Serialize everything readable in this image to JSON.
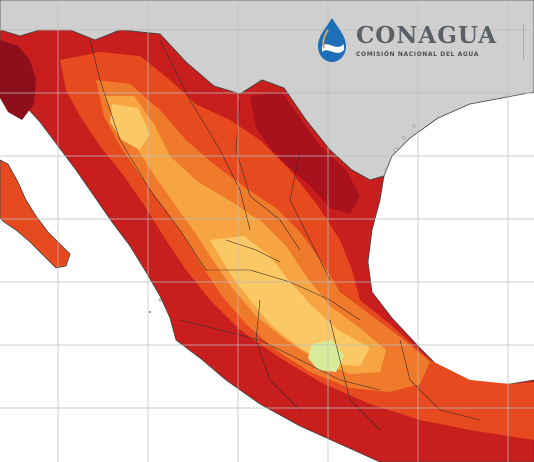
{
  "logo": {
    "title": "CONAGUA",
    "subtitle": "COMISIÓN NACIONAL DEL AGUA",
    "icon": "water-drop-wave-icon"
  },
  "colors": {
    "land_foreign": "#cfcfcf",
    "ocean": "#ffffff",
    "grid": "#bdbdbd",
    "heat_extreme": "#8e0f1c",
    "heat_very_high": "#c81e1e",
    "heat_high": "#e64a1e",
    "heat_medium": "#f07a2c",
    "heat_low": "#f7a543",
    "heat_mild": "#fbc866",
    "heat_cool": "#d7ec9a",
    "logo_blue": "#1e6fb8",
    "logo_gold": "#c9a66b"
  }
}
